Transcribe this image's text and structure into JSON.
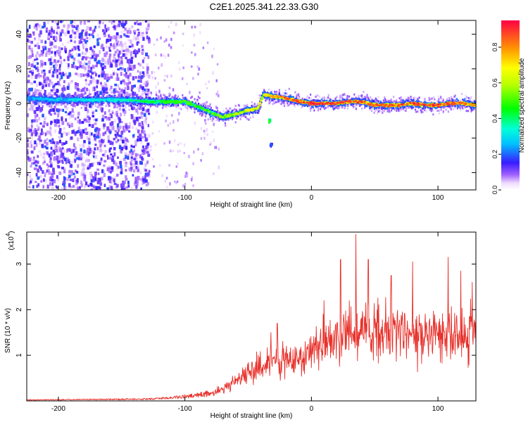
{
  "title": "C2E1.2025.341.22.33.G30",
  "colors": {
    "snr_line": "#e8302a",
    "axis": "#000000",
    "background": "#ffffff"
  },
  "chart_data": [
    {
      "type": "heatmap",
      "name": "spectrogram",
      "xlabel": "Height of straight line (km)",
      "ylabel": "Frequency (Hz)",
      "xlim": [
        -225,
        130
      ],
      "ylim": [
        -50,
        48
      ],
      "x_ticks": [
        -200,
        -100,
        0,
        100
      ],
      "x_tick_labels": [
        "-200",
        "-100",
        "0",
        "100"
      ],
      "y_ticks": [
        -40,
        -20,
        0,
        20,
        40
      ],
      "y_tick_labels": [
        "-40",
        "-20",
        "0",
        "20",
        "40"
      ],
      "colorbar": {
        "label": "Normalized spectral amplitude",
        "range": [
          0.0,
          0.95
        ],
        "ticks": [
          0.0,
          0.2,
          0.4,
          0.6,
          0.8
        ],
        "tick_labels": [
          "0.0",
          "0.2",
          "0.4",
          "0.6",
          "0.8"
        ],
        "colormap": "rainbow-white-to-red"
      },
      "ridge_center_hz": [
        {
          "x": -225,
          "y": 3
        },
        {
          "x": -200,
          "y": 2
        },
        {
          "x": -175,
          "y": 2
        },
        {
          "x": -150,
          "y": 2
        },
        {
          "x": -125,
          "y": 1
        },
        {
          "x": -100,
          "y": 1
        },
        {
          "x": -90,
          "y": -2
        },
        {
          "x": -80,
          "y": -5
        },
        {
          "x": -70,
          "y": -8
        },
        {
          "x": -60,
          "y": -6
        },
        {
          "x": -50,
          "y": -4
        },
        {
          "x": -42,
          "y": -3
        },
        {
          "x": -38,
          "y": 5
        },
        {
          "x": -30,
          "y": 4
        },
        {
          "x": -20,
          "y": 3
        },
        {
          "x": -10,
          "y": 1
        },
        {
          "x": 0,
          "y": 0
        },
        {
          "x": 10,
          "y": 0
        },
        {
          "x": 20,
          "y": 0
        },
        {
          "x": 30,
          "y": 1
        },
        {
          "x": 40,
          "y": 1
        },
        {
          "x": 50,
          "y": -1
        },
        {
          "x": 60,
          "y": -1
        },
        {
          "x": 70,
          "y": -1
        },
        {
          "x": 80,
          "y": 0
        },
        {
          "x": 90,
          "y": -1
        },
        {
          "x": 100,
          "y": -1
        },
        {
          "x": 110,
          "y": 0
        },
        {
          "x": 120,
          "y": 0
        },
        {
          "x": 130,
          "y": -1
        }
      ],
      "ridge_peak_amplitude": [
        {
          "x": -225,
          "y": 0.25
        },
        {
          "x": -150,
          "y": 0.35
        },
        {
          "x": -125,
          "y": 0.45
        },
        {
          "x": -100,
          "y": 0.5
        },
        {
          "x": -70,
          "y": 0.55
        },
        {
          "x": -40,
          "y": 0.7
        },
        {
          "x": -20,
          "y": 0.85
        },
        {
          "x": 0,
          "y": 0.9
        },
        {
          "x": 50,
          "y": 0.85
        },
        {
          "x": 100,
          "y": 0.9
        },
        {
          "x": 130,
          "y": 0.8
        }
      ],
      "noise_region": {
        "x_from": -225,
        "x_to": -128,
        "level": 0.15
      },
      "isolated_features": [
        {
          "x": -32,
          "y": -24,
          "amplitude": 0.2
        },
        {
          "x": -33,
          "y": -10,
          "amplitude": 0.45
        }
      ]
    },
    {
      "type": "line",
      "name": "snr",
      "xlabel": "Height of straight line (km)",
      "ylabel": "SNR (10 * v/v)",
      "yscale_label": "(x10",
      "yscale_exponent": "4",
      "yscale_suffix": ")",
      "xlim": [
        -225,
        130
      ],
      "ylim": [
        0,
        3.7
      ],
      "x_ticks": [
        -200,
        -100,
        0,
        100
      ],
      "x_tick_labels": [
        "-200",
        "-100",
        "0",
        "100"
      ],
      "y_ticks": [
        1,
        2,
        3
      ],
      "y_tick_labels": [
        "1",
        "2",
        "3"
      ],
      "envelope": [
        {
          "x": -225,
          "y": 0.02
        },
        {
          "x": -180,
          "y": 0.03
        },
        {
          "x": -130,
          "y": 0.04
        },
        {
          "x": -110,
          "y": 0.07
        },
        {
          "x": -90,
          "y": 0.12
        },
        {
          "x": -75,
          "y": 0.2
        },
        {
          "x": -60,
          "y": 0.4
        },
        {
          "x": -45,
          "y": 0.7
        },
        {
          "x": -30,
          "y": 0.9
        },
        {
          "x": -15,
          "y": 0.9
        },
        {
          "x": 0,
          "y": 1.05
        },
        {
          "x": 15,
          "y": 1.3
        },
        {
          "x": 30,
          "y": 1.45
        },
        {
          "x": 50,
          "y": 1.5
        },
        {
          "x": 80,
          "y": 1.45
        },
        {
          "x": 110,
          "y": 1.45
        },
        {
          "x": 130,
          "y": 1.5
        }
      ],
      "peaks": [
        {
          "x": -47,
          "y": 0.85
        },
        {
          "x": -32,
          "y": 1.5
        },
        {
          "x": -27,
          "y": 1.7
        },
        {
          "x": 10,
          "y": 2.2
        },
        {
          "x": 23,
          "y": 3.1
        },
        {
          "x": 35,
          "y": 3.65
        },
        {
          "x": 45,
          "y": 3.1
        },
        {
          "x": 63,
          "y": 2.75
        },
        {
          "x": 80,
          "y": 3.05
        },
        {
          "x": 108,
          "y": 3.15
        },
        {
          "x": 118,
          "y": 2.85
        },
        {
          "x": 127,
          "y": 2.6
        }
      ]
    }
  ]
}
